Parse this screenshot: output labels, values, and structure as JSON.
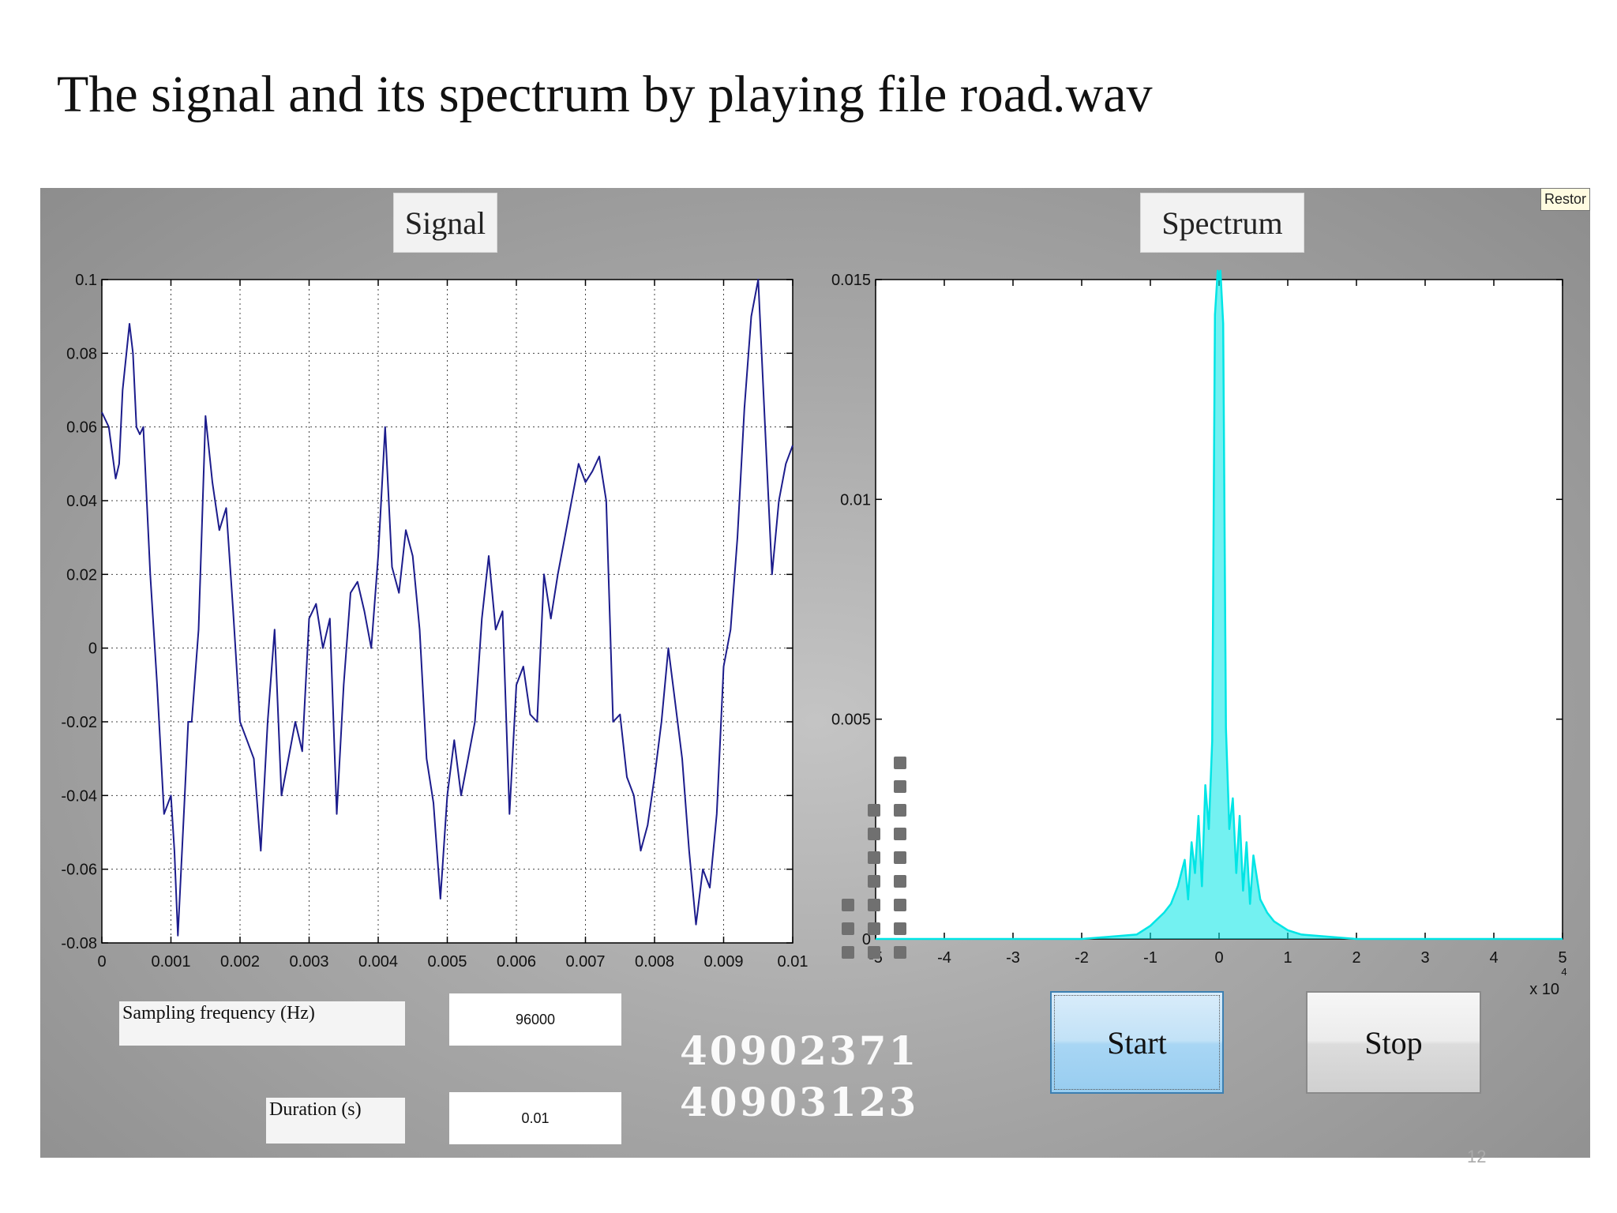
{
  "slide_title": "The signal and its spectrum by playing file road.wav",
  "page_number": "12",
  "gui": {
    "signal_title": "Signal",
    "spectrum_title": "Spectrum",
    "restore_tooltip": "Restor",
    "sampling_label": "Sampling frequency (Hz)",
    "sampling_value": "96000",
    "duration_label": "Duration (s)",
    "duration_value": "0.01",
    "ids": [
      "40902371",
      "40903123"
    ],
    "start_label": "Start",
    "stop_label": "Stop",
    "level_meter_columns": [
      3,
      7,
      9
    ]
  },
  "chart_data": [
    {
      "type": "line",
      "name": "signal",
      "xlim": [
        0,
        0.01
      ],
      "ylim": [
        -0.08,
        0.1
      ],
      "xticks": [
        "0",
        "0.001",
        "0.002",
        "0.003",
        "0.004",
        "0.005",
        "0.006",
        "0.007",
        "0.008",
        "0.009",
        "0.01"
      ],
      "yticks": [
        "0.1",
        "0.08",
        "0.06",
        "0.04",
        "0.02",
        "0",
        "-0.02",
        "-0.04",
        "-0.06",
        "-0.08"
      ],
      "grid": true,
      "color": "#1c1c8c",
      "x": [
        0,
        0.0001,
        0.0002,
        0.00025,
        0.0003,
        0.0004,
        0.00045,
        0.0005,
        0.00055,
        0.0006,
        0.0007,
        0.0008,
        0.0009,
        0.001,
        0.00105,
        0.0011,
        0.0012,
        0.00125,
        0.0013,
        0.0014,
        0.0015,
        0.0016,
        0.0017,
        0.0018,
        0.0019,
        0.002,
        0.0021,
        0.0022,
        0.0023,
        0.0024,
        0.0025,
        0.0026,
        0.0027,
        0.0028,
        0.0029,
        0.003,
        0.0031,
        0.0032,
        0.0033,
        0.0034,
        0.0035,
        0.0036,
        0.0037,
        0.0038,
        0.0039,
        0.004,
        0.0041,
        0.0042,
        0.0043,
        0.0044,
        0.0045,
        0.0046,
        0.0047,
        0.0048,
        0.0049,
        0.005,
        0.0051,
        0.0052,
        0.0053,
        0.0054,
        0.0055,
        0.0056,
        0.0057,
        0.0058,
        0.0059,
        0.006,
        0.0061,
        0.0062,
        0.0063,
        0.0064,
        0.0065,
        0.0066,
        0.0067,
        0.0068,
        0.0069,
        0.007,
        0.0071,
        0.0072,
        0.0073,
        0.0074,
        0.0075,
        0.0076,
        0.0077,
        0.0078,
        0.0079,
        0.008,
        0.0081,
        0.0082,
        0.0083,
        0.0084,
        0.0085,
        0.0086,
        0.0087,
        0.0088,
        0.0089,
        0.009,
        0.0091,
        0.0092,
        0.0093,
        0.0094,
        0.0095,
        0.0096,
        0.0097,
        0.0098,
        0.0099,
        0.01
      ],
      "y": [
        0.064,
        0.06,
        0.046,
        0.05,
        0.07,
        0.088,
        0.08,
        0.06,
        0.058,
        0.06,
        0.02,
        -0.01,
        -0.045,
        -0.04,
        -0.055,
        -0.078,
        -0.04,
        -0.02,
        -0.02,
        0.005,
        0.063,
        0.045,
        0.032,
        0.038,
        0.01,
        -0.02,
        -0.025,
        -0.03,
        -0.055,
        -0.02,
        0.005,
        -0.04,
        -0.03,
        -0.02,
        -0.028,
        0.008,
        0.012,
        0.0,
        0.008,
        -0.045,
        -0.01,
        0.015,
        0.018,
        0.01,
        0.0,
        0.025,
        0.06,
        0.022,
        0.015,
        0.032,
        0.025,
        0.005,
        -0.03,
        -0.042,
        -0.068,
        -0.04,
        -0.025,
        -0.04,
        -0.03,
        -0.02,
        0.008,
        0.025,
        0.005,
        0.01,
        -0.045,
        -0.01,
        -0.005,
        -0.018,
        -0.02,
        0.02,
        0.008,
        0.02,
        0.03,
        0.04,
        0.05,
        0.045,
        0.048,
        0.052,
        0.04,
        -0.02,
        -0.018,
        -0.035,
        -0.04,
        -0.055,
        -0.048,
        -0.035,
        -0.02,
        0.0,
        -0.015,
        -0.03,
        -0.055,
        -0.075,
        -0.06,
        -0.065,
        -0.045,
        -0.005,
        0.005,
        0.03,
        0.065,
        0.09,
        0.1,
        0.06,
        0.02,
        0.04,
        0.05,
        0.055
      ]
    },
    {
      "type": "line",
      "name": "spectrum",
      "xlim": [
        -5,
        5
      ],
      "ylim": [
        0,
        0.015
      ],
      "xticks": [
        "-5",
        "-4",
        "-3",
        "-2",
        "-1",
        "0",
        "1",
        "2",
        "3",
        "4",
        "5"
      ],
      "yticks": [
        "0.015",
        "0.01",
        "0.005",
        "0"
      ],
      "x_multiplier_label": "x 10",
      "x_multiplier_exponent": "4",
      "grid": false,
      "color": "#00e5e5",
      "x": [
        -5,
        -2.0,
        -1.2,
        -1.0,
        -0.8,
        -0.7,
        -0.6,
        -0.5,
        -0.45,
        -0.4,
        -0.35,
        -0.3,
        -0.25,
        -0.2,
        -0.15,
        -0.1,
        -0.06,
        -0.02,
        0.0,
        0.02,
        0.06,
        0.1,
        0.15,
        0.2,
        0.25,
        0.3,
        0.35,
        0.4,
        0.45,
        0.5,
        0.6,
        0.7,
        0.8,
        1.0,
        1.2,
        2.0,
        5
      ],
      "y": [
        0.0,
        0.0,
        0.0001,
        0.0003,
        0.0006,
        0.0008,
        0.0012,
        0.0018,
        0.0009,
        0.0022,
        0.0015,
        0.0028,
        0.0012,
        0.0035,
        0.0025,
        0.0045,
        0.0142,
        0.0152,
        0.015,
        0.0152,
        0.014,
        0.0048,
        0.0025,
        0.0032,
        0.0015,
        0.0028,
        0.0011,
        0.0022,
        0.0008,
        0.0019,
        0.0009,
        0.0006,
        0.0004,
        0.0002,
        0.0001,
        0.0,
        0.0
      ]
    }
  ]
}
